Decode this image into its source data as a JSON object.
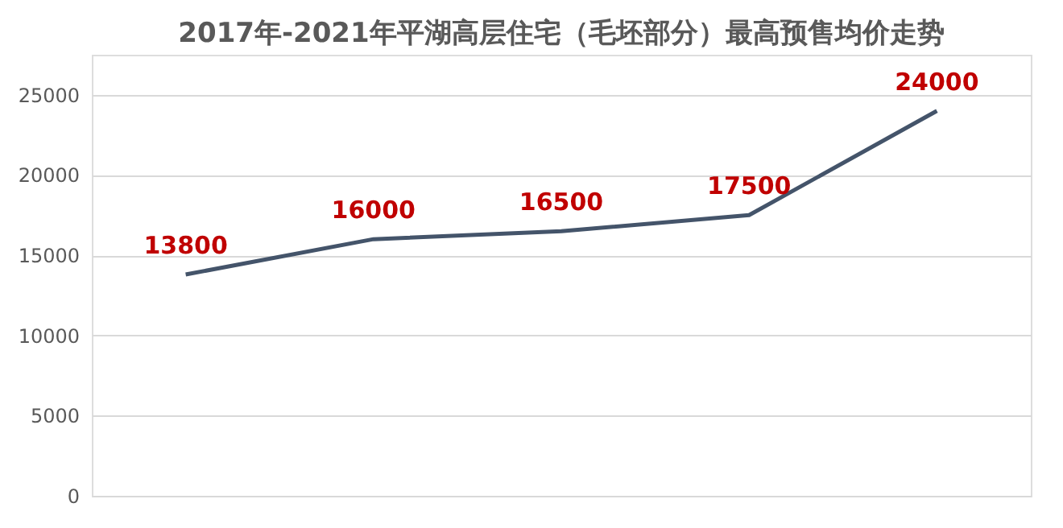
{
  "chart_data": {
    "type": "line",
    "title": "2017年-2021年平湖高层住宅（毛坯部分）最高预售均价走势",
    "categories": [
      null,
      null,
      null,
      null,
      null
    ],
    "series": [
      {
        "color": "#44546a",
        "values": [
          13800,
          16000,
          16500,
          17500,
          24000
        ]
      }
    ],
    "ylim": [
      0,
      27500
    ],
    "yticks": [
      0,
      5000,
      10000,
      15000,
      20000,
      25000
    ],
    "grid": "y",
    "data_labels": true,
    "marker": "none",
    "line_style": "solid"
  }
}
